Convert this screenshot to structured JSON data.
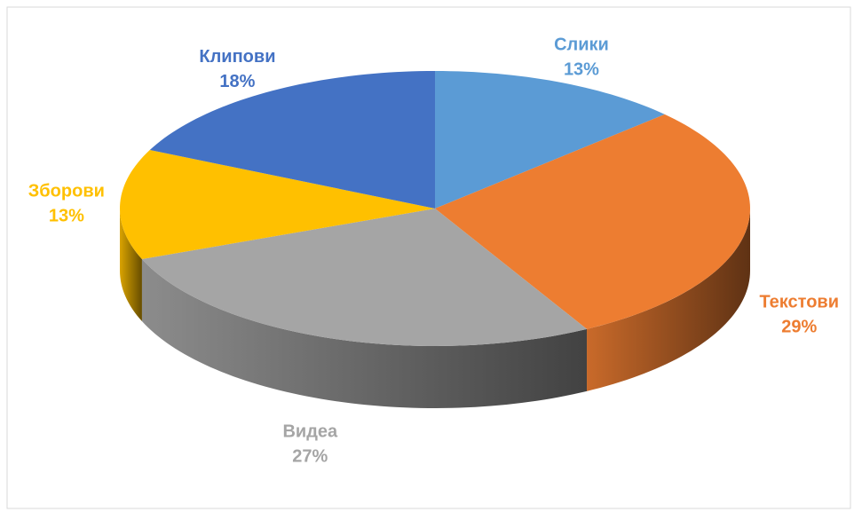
{
  "chart_data": {
    "type": "pie3d",
    "categories": [
      "Слики",
      "Текстови",
      "Видеа",
      "Зборови",
      "Клипови"
    ],
    "values": [
      13,
      29,
      27,
      13,
      18
    ],
    "value_labels": [
      "13%",
      "29%",
      "27%",
      "13%",
      "18%"
    ],
    "colors": [
      "#5b9bd5",
      "#ed7d31",
      "#a5a5a5",
      "#ffc000",
      "#4472c4"
    ]
  }
}
